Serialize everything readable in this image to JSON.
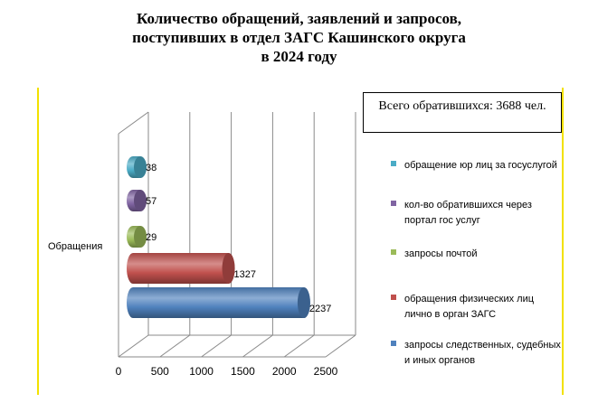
{
  "title_lines": [
    "Количество обращений, заявлений и запросов,",
    "поступивших в отдел ЗАГС Кашинского округа",
    "в 2024 году"
  ],
  "total_box": "Всего обратившихся: 3688 чел.",
  "chart_data": {
    "type": "bar",
    "orientation": "horizontal",
    "category_label": "Обращения",
    "xlim": [
      0,
      2500
    ],
    "x_ticks": [
      "0",
      "500",
      "1000",
      "1500",
      "2000",
      "2500"
    ],
    "grid": true,
    "legend_position": "right",
    "series": [
      {
        "name": "запросы следственных, судебных и иных органов",
        "value": 2237,
        "label": "2237",
        "color": "#4f81bd"
      },
      {
        "name": "обращения физических лиц лично в орган ЗАГС",
        "value": 1327,
        "label": "1327",
        "color": "#c0504d"
      },
      {
        "name": "запросы почтой",
        "value": 29,
        "label": "29",
        "color": "#9bbb59"
      },
      {
        "name": "кол-во обратившихся через портал гос услуг",
        "value": 57,
        "label": "57",
        "color": "#8064a2"
      },
      {
        "name": "обращение юр лиц за госуслугой",
        "value": 38,
        "label": "38",
        "color": "#4bacc6"
      }
    ]
  }
}
